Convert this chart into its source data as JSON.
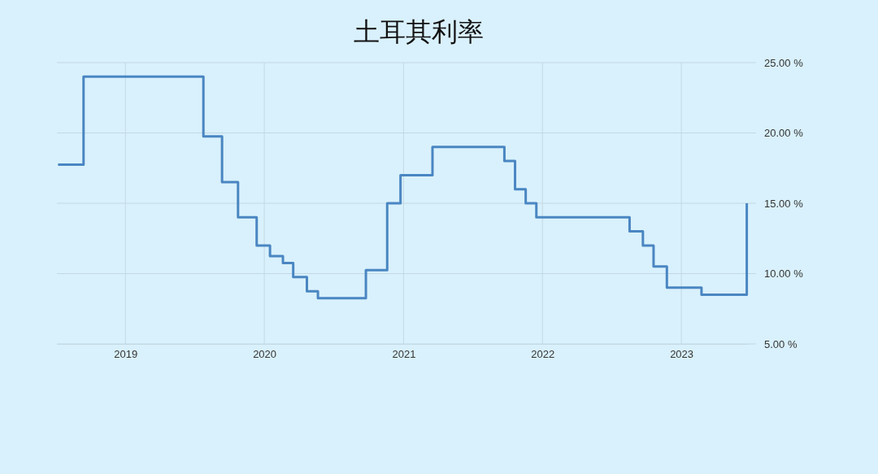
{
  "chart_data": {
    "type": "step",
    "title": "土耳其利率",
    "x": [
      "2018-07-08",
      "2018-09-13",
      "2019-07-25",
      "2019-09-12",
      "2019-10-24",
      "2019-12-12",
      "2020-01-16",
      "2020-02-19",
      "2020-03-17",
      "2020-04-22",
      "2020-05-21",
      "2020-09-24",
      "2020-11-19",
      "2020-12-24",
      "2021-03-18",
      "2021-09-23",
      "2021-10-21",
      "2021-11-18",
      "2021-12-16",
      "2022-08-18",
      "2022-09-22",
      "2022-10-20",
      "2022-11-24",
      "2023-02-23",
      "2023-06-22"
    ],
    "series": [
      {
        "color": "#4a86c2",
        "values": [
          17.75,
          24,
          19.75,
          16.5,
          14,
          12,
          11.25,
          10.75,
          9.75,
          8.75,
          8.25,
          10.25,
          15,
          17,
          19,
          18,
          16,
          15,
          14,
          13,
          12,
          10.5,
          9,
          8.5,
          15
        ]
      }
    ],
    "xlim": [
      "2018-07-05",
      "2023-06-25"
    ],
    "xticks": [
      "2019",
      "2020",
      "2021",
      "2022",
      "2023"
    ],
    "ylim": [
      5,
      25
    ],
    "yticks": [
      {
        "value": 5,
        "label": "5.00 %"
      },
      {
        "value": 10,
        "label": "10.00 %"
      },
      {
        "value": 15,
        "label": "15.00 %"
      },
      {
        "value": 20,
        "label": "20.00 %"
      },
      {
        "value": 25,
        "label": "25.00 %"
      }
    ],
    "grid": true,
    "line_style": "solid",
    "marker": "none"
  }
}
